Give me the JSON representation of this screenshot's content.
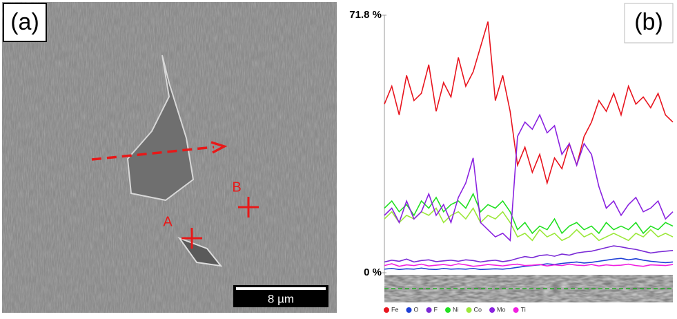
{
  "panel_a": {
    "label": "(a)",
    "point_a": "A",
    "point_b": "B",
    "scale_bar": "8 µm"
  },
  "chart_data": {
    "type": "line",
    "panel_label": "(b)",
    "categories": [
      null,
      null,
      null,
      null,
      null,
      null,
      null,
      null,
      null,
      null,
      null,
      null,
      null,
      null,
      null,
      null,
      null,
      null,
      null,
      null,
      null,
      null,
      null,
      null,
      null,
      null,
      null,
      null,
      null,
      null,
      null,
      null,
      null,
      null,
      null,
      null,
      null,
      null,
      null,
      null
    ],
    "ylim": [
      0,
      71.8
    ],
    "yticks": [
      {
        "value": 0,
        "label": "0 %"
      },
      {
        "value": 71.8,
        "label": "71.8 %"
      }
    ],
    "series": [
      {
        "name": "Fe",
        "color": "#e8141e",
        "values": [
          47,
          52,
          44,
          55,
          48,
          50,
          58,
          45,
          53,
          49,
          60,
          52,
          56,
          63,
          70,
          48,
          55,
          45,
          30,
          35,
          28,
          33,
          25,
          32,
          29,
          36,
          30,
          38,
          42,
          48,
          45,
          50,
          44,
          52,
          47,
          49,
          46,
          50,
          44,
          42
        ]
      },
      {
        "name": "O",
        "color": "#1e3fd6",
        "values": [
          1,
          1.2,
          0.9,
          1.1,
          1,
          1.3,
          1,
          0.9,
          1.2,
          1,
          1.1,
          1,
          1.2,
          0.9,
          1,
          1.1,
          1,
          1.2,
          1.5,
          1.8,
          2,
          2.2,
          2.5,
          2.3,
          2.6,
          2.8,
          3,
          2.7,
          2.9,
          3.2,
          3.5,
          3.8,
          4,
          3.6,
          3.9,
          3.5,
          3.2,
          3,
          2.8,
          3
        ]
      },
      {
        "name": "F",
        "color": "#7a2ad6",
        "values": [
          3,
          3.5,
          3.2,
          3.8,
          3,
          3.4,
          3.6,
          3.1,
          3.3,
          3.5,
          3.2,
          3.6,
          3.4,
          3,
          3.3,
          3.5,
          3.1,
          3.4,
          4,
          4.5,
          4.2,
          4.8,
          5,
          4.6,
          5.2,
          4.9,
          5.5,
          5.8,
          6,
          6.5,
          7,
          7.5,
          7.2,
          6.8,
          6.5,
          6,
          5.5,
          5.8,
          6,
          6.2
        ]
      },
      {
        "name": "Ni",
        "color": "#22e022",
        "values": [
          18,
          20,
          17,
          19,
          16,
          20,
          18,
          21,
          17,
          19,
          20,
          18,
          22,
          17,
          19,
          18,
          20,
          17,
          12,
          14,
          11,
          13,
          12,
          15,
          11,
          13,
          14,
          12,
          13,
          11,
          14,
          12,
          13,
          12,
          14,
          11,
          13,
          12,
          14,
          13
        ]
      },
      {
        "name": "Co",
        "color": "#9be83a",
        "values": [
          15,
          17,
          14,
          16,
          15,
          17,
          16,
          18,
          14,
          16,
          17,
          15,
          18,
          14,
          16,
          15,
          17,
          14,
          10,
          11,
          9,
          12,
          10,
          11,
          9,
          10,
          12,
          10,
          11,
          9,
          10,
          11,
          10,
          9,
          11,
          10,
          12,
          10,
          11,
          10
        ]
      },
      {
        "name": "Mo",
        "color": "#8a22e0",
        "values": [
          16,
          18,
          14,
          20,
          15,
          17,
          22,
          16,
          19,
          14,
          21,
          25,
          32,
          14,
          12,
          10,
          11,
          9,
          38,
          42,
          40,
          44,
          39,
          41,
          33,
          36,
          30,
          36,
          33,
          24,
          18,
          20,
          16,
          19,
          21,
          17,
          18,
          20,
          15,
          17
        ]
      },
      {
        "name": "Ti",
        "color": "#f020e0",
        "values": [
          2,
          2.5,
          1.8,
          2.2,
          2,
          2.4,
          1.9,
          2.1,
          2.3,
          2,
          2.5,
          2.2,
          1.8,
          2,
          2.3,
          2.1,
          1.9,
          2.2,
          2.4,
          2,
          2.1,
          2.3,
          1.9,
          2.2,
          2,
          2.4,
          2.1,
          2,
          2.3,
          1.9,
          2.2,
          2,
          2.1,
          2.4,
          2,
          1.8,
          2.2,
          2.1,
          2,
          2.3
        ]
      }
    ]
  }
}
